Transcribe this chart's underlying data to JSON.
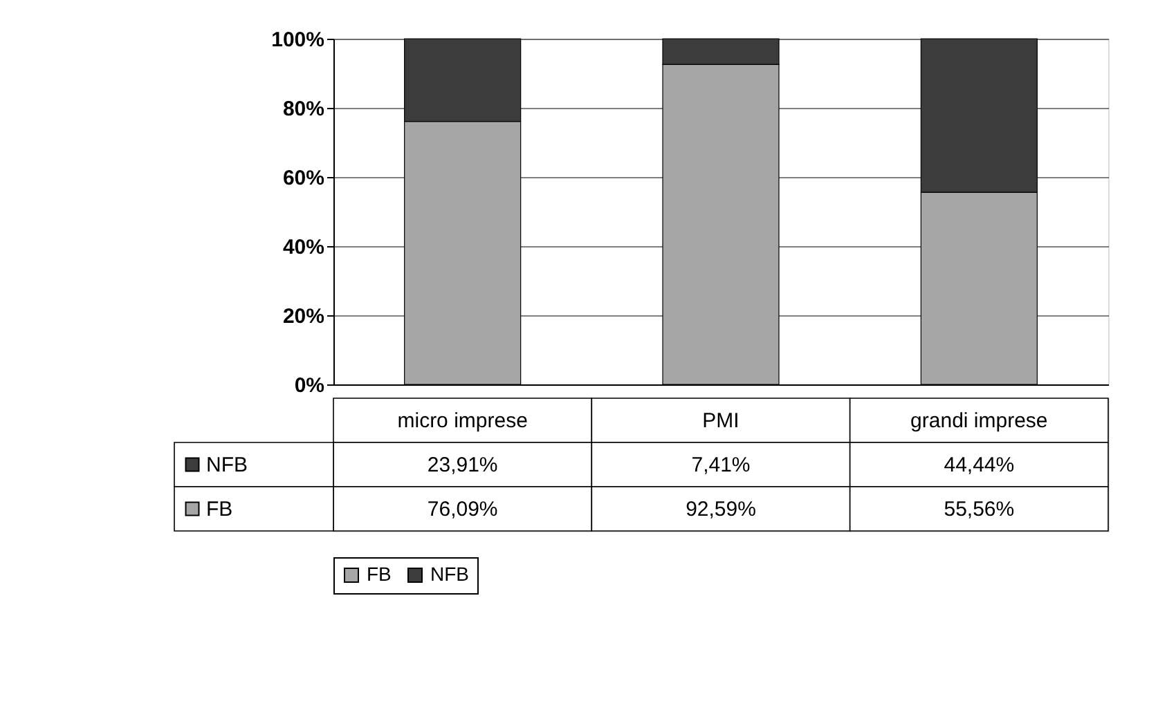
{
  "chart_data": {
    "type": "bar",
    "stacked": true,
    "categories": [
      "micro imprese",
      "PMI",
      "grandi imprese"
    ],
    "series": [
      {
        "name": "FB",
        "color": "#a6a6a6",
        "values": [
          76.09,
          92.59,
          55.56
        ],
        "value_labels": [
          "76,09%",
          "92,59%",
          "55,56%"
        ]
      },
      {
        "name": "NFB",
        "color": "#3c3c3c",
        "values": [
          23.91,
          7.41,
          44.44
        ],
        "value_labels": [
          "23,91%",
          "7,41%",
          "44,44%"
        ]
      }
    ],
    "ylim": [
      0,
      100
    ],
    "yticks": [
      {
        "value": 0,
        "label": "0%"
      },
      {
        "value": 20,
        "label": "20%"
      },
      {
        "value": 40,
        "label": "40%"
      },
      {
        "value": 60,
        "label": "60%"
      },
      {
        "value": 80,
        "label": "80%"
      },
      {
        "value": 100,
        "label": "100%"
      }
    ],
    "grid": "y",
    "legend": "bottom"
  }
}
